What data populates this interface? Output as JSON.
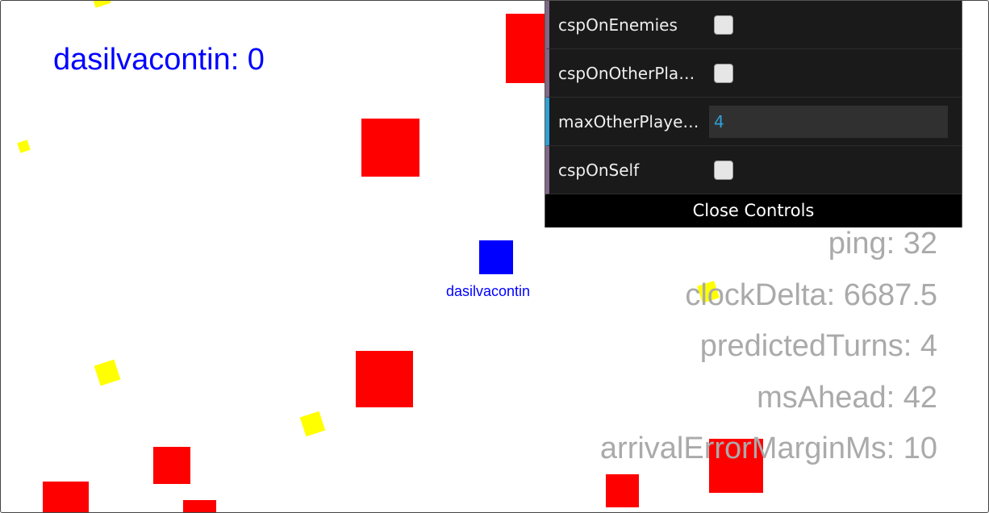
{
  "hud": {
    "score_label": "dasilvacontin: 0"
  },
  "player": {
    "name": "dasilvacontin",
    "color": "#0000ff"
  },
  "colors": {
    "enemy": "#ff0000",
    "coin": "#ffff00",
    "player": "#0000ff",
    "stats_text": "#aaaaaa"
  },
  "stats": {
    "ping": "ping: 32",
    "clockDelta": "clockDelta: 6687.5",
    "predictedTurns": "predictedTurns: 4",
    "msAhead": "msAhead: 42",
    "arrivalErrorMarginMs": "arrivalErrorMarginMs: 10"
  },
  "controls": {
    "items": [
      {
        "label": "cspOnEnemies",
        "type": "checkbox",
        "checked": false
      },
      {
        "label": "cspOnOtherPla…",
        "type": "checkbox",
        "checked": false
      },
      {
        "label": "maxOtherPlaye…",
        "type": "number",
        "value": "4"
      },
      {
        "label": "cspOnSelf",
        "type": "checkbox",
        "checked": false
      }
    ],
    "close_label": "Close Controls"
  }
}
